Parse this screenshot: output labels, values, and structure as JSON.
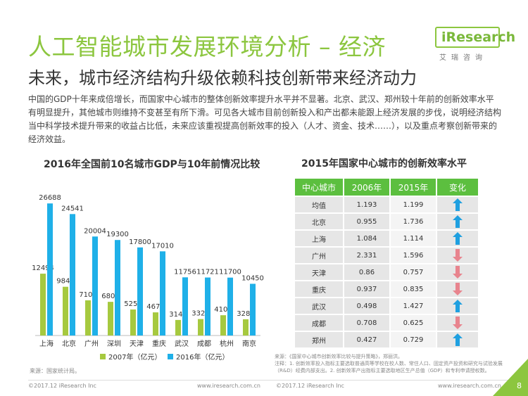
{
  "header": {
    "title": "人工智能城市发展环境分析 – 经济",
    "subtitle": "未来，城市经济结构升级依赖科技创新带来经济动力",
    "logo_text": "iResearch",
    "logo_sub": "艾瑞咨询"
  },
  "intro": "中国的GDP十年来成倍增长，而国家中心城市的整体创新效率提升水平并不显著。北京、武汉、郑州较十年前的创新效率水平有明显提升，其他城市则维持不变甚至有所下滑。可见各大城市目前创新投入和产出都未能跟上经济发展的步伐，说明经济结构当中科学技术提升带来的收益占比低，未来应该重视提高创新效率的投入（人才、资金、技术……），以及重点考察创新带来的经济效益。",
  "colors": {
    "series2007": "#a6c93f",
    "series2016": "#1fb0e8",
    "green": "#5cbf3f",
    "up": "#1fa0e0",
    "down": "#e8848e"
  },
  "chart_data": [
    {
      "type": "bar",
      "title": "2016年全国前10名城市GDP与10年前情况比较",
      "categories": [
        "上海",
        "北京",
        "广州",
        "深圳",
        "天津",
        "重庆",
        "武汉",
        "成都",
        "杭州",
        "南京"
      ],
      "series": [
        {
          "name": "2007年（亿元）",
          "values": [
            12494,
            9847,
            7109,
            6802,
            5253,
            4676,
            3142,
            3324,
            4100,
            3284
          ]
        },
        {
          "name": "2016年（亿元）",
          "values": [
            26688,
            24541,
            20004,
            19300,
            17800,
            17010,
            11756,
            11721,
            11700,
            10450
          ]
        }
      ],
      "ylim": [
        0,
        28000
      ],
      "grid": false,
      "legend": "bottom",
      "source": "来源：国家统计局。"
    },
    {
      "type": "table",
      "title": "2015年国家中心城市的创新效率水平",
      "columns": [
        "中心城市",
        "2006年",
        "2015年",
        "变化"
      ],
      "rows": [
        {
          "city": "均值",
          "v2006": "1.193",
          "v2015": "1.199",
          "change": "up"
        },
        {
          "city": "北京",
          "v2006": "0.955",
          "v2015": "1.736",
          "change": "up"
        },
        {
          "city": "上海",
          "v2006": "1.084",
          "v2015": "1.114",
          "change": "up"
        },
        {
          "city": "广州",
          "v2006": "2.331",
          "v2015": "1.596",
          "change": "down"
        },
        {
          "city": "天津",
          "v2006": "0.86",
          "v2015": "0.757",
          "change": "down"
        },
        {
          "city": "重庆",
          "v2006": "0.937",
          "v2015": "0.835",
          "change": "down"
        },
        {
          "city": "武汉",
          "v2006": "0.498",
          "v2015": "1.427",
          "change": "up"
        },
        {
          "city": "成都",
          "v2006": "0.708",
          "v2015": "0.625",
          "change": "down"
        },
        {
          "city": "郑州",
          "v2006": "0.427",
          "v2015": "0.729",
          "change": "up"
        }
      ],
      "notes": "来源：《国家中心城市创新效率比较与提升策略》，郑丽洪。\n注释：1. 创新效率投入指标主要选取普通高等学校在校人数、常住人口、固定资产投资和研究与试验发展（R&D）经费内部支出。2. 创新效率产出指标主要选取地区生产总值（GDP）和专利申请授权数。"
    }
  ],
  "footer": {
    "left_copyright": "©2017.12 iResearch Inc",
    "left_url": "www.iresearch.com.cn",
    "right_copyright": "©2017.12 iResearch Inc",
    "right_url": "www.iresearch.com.cn",
    "page": "8"
  }
}
